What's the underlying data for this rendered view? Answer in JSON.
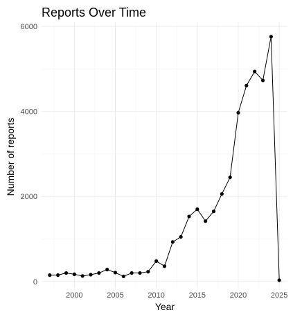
{
  "chart_data": {
    "type": "line",
    "title": "Reports Over Time",
    "xlabel": "Year",
    "ylabel": "Number of reports",
    "xlim": [
      1996,
      2026
    ],
    "ylim": [
      -150,
      6100
    ],
    "x_ticks": [
      2000,
      2005,
      2010,
      2015,
      2020,
      2025
    ],
    "y_ticks": [
      0,
      2000,
      4000,
      6000
    ],
    "x_tick_labels": [
      "2000",
      "2005",
      "2010",
      "2015",
      "2020",
      "2025"
    ],
    "y_tick_labels": [
      "0",
      "2000",
      "4000",
      "6000"
    ],
    "grid": true,
    "legend": "none",
    "series": [
      {
        "x": [
          1997,
          1998,
          1999,
          2000,
          2001,
          2002,
          2003,
          2004,
          2005,
          2006,
          2007,
          2008,
          2009,
          2010,
          2011,
          2012,
          2013,
          2014,
          2015,
          2016,
          2017,
          2018,
          2019,
          2020,
          2021,
          2022,
          2023,
          2024,
          2025
        ],
        "values": [
          150,
          150,
          200,
          170,
          130,
          160,
          200,
          280,
          210,
          120,
          200,
          200,
          230,
          480,
          360,
          930,
          1050,
          1530,
          1700,
          1420,
          1650,
          2060,
          2450,
          3970,
          4610,
          4940,
          4730,
          5760,
          30
        ]
      }
    ],
    "colors": {
      "line": "#000000",
      "point": "#000000",
      "grid_major": "#ebebeb",
      "grid_minor": "#f5f5f5"
    }
  }
}
